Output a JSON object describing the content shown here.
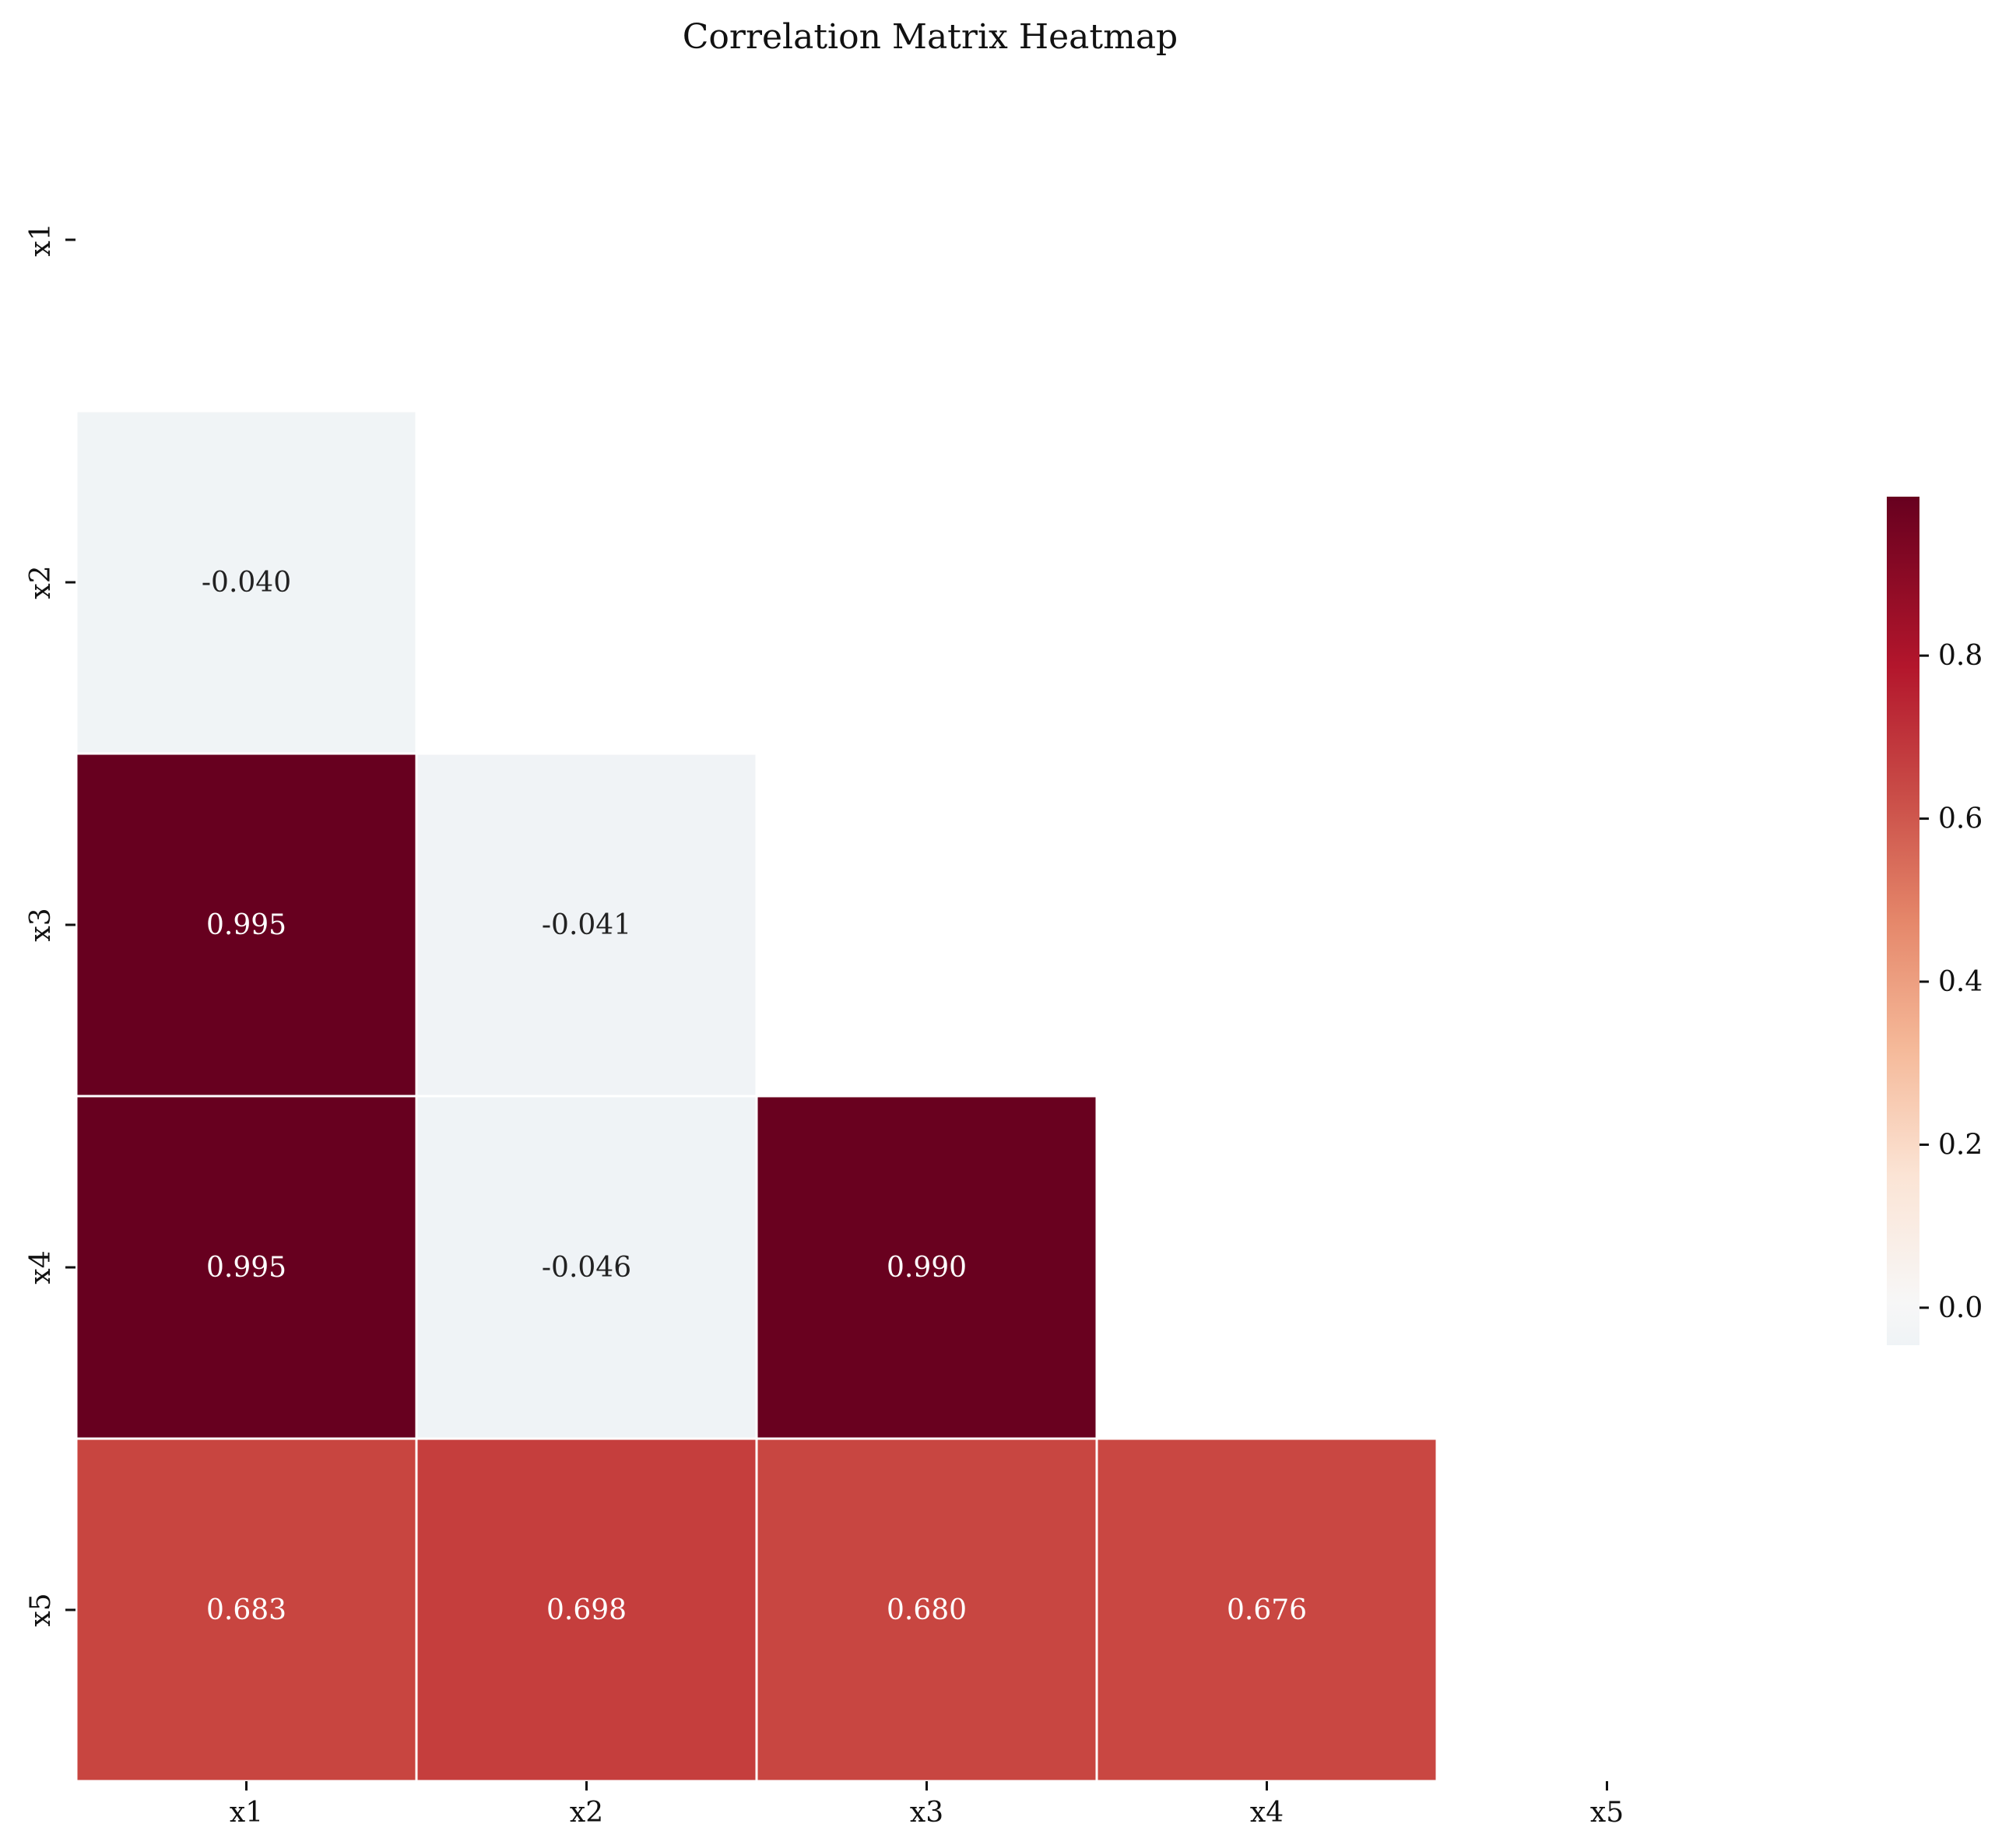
{
  "chart_data": {
    "type": "heatmap",
    "title": "Correlation Matrix Heatmap",
    "xlabel": "",
    "ylabel": "",
    "row_labels": [
      "x1",
      "x2",
      "x3",
      "x4",
      "x5"
    ],
    "col_labels": [
      "x1",
      "x2",
      "x3",
      "x4",
      "x5"
    ],
    "mask": "upper-triangle-including-diagonal",
    "cells": [
      {
        "row": "x2",
        "col": "x1",
        "value": -0.04,
        "label": "-0.040"
      },
      {
        "row": "x3",
        "col": "x1",
        "value": 0.995,
        "label": "0.995"
      },
      {
        "row": "x3",
        "col": "x2",
        "value": -0.041,
        "label": "-0.041"
      },
      {
        "row": "x4",
        "col": "x1",
        "value": 0.995,
        "label": "0.995"
      },
      {
        "row": "x4",
        "col": "x2",
        "value": -0.046,
        "label": "-0.046"
      },
      {
        "row": "x4",
        "col": "x3",
        "value": 0.99,
        "label": "0.990"
      },
      {
        "row": "x5",
        "col": "x1",
        "value": 0.683,
        "label": "0.683"
      },
      {
        "row": "x5",
        "col": "x2",
        "value": 0.698,
        "label": "0.698"
      },
      {
        "row": "x5",
        "col": "x3",
        "value": 0.68,
        "label": "0.680"
      },
      {
        "row": "x5",
        "col": "x4",
        "value": 0.676,
        "label": "0.676"
      }
    ],
    "colorbar": {
      "colormap": "RdBu_r",
      "range": [
        -0.046,
        0.995
      ],
      "ticks": [
        0.0,
        0.2,
        0.4,
        0.6,
        0.8
      ],
      "tick_labels": [
        "0.0",
        "0.2",
        "0.4",
        "0.6",
        "0.8"
      ]
    },
    "legend": "none",
    "grid": false
  }
}
